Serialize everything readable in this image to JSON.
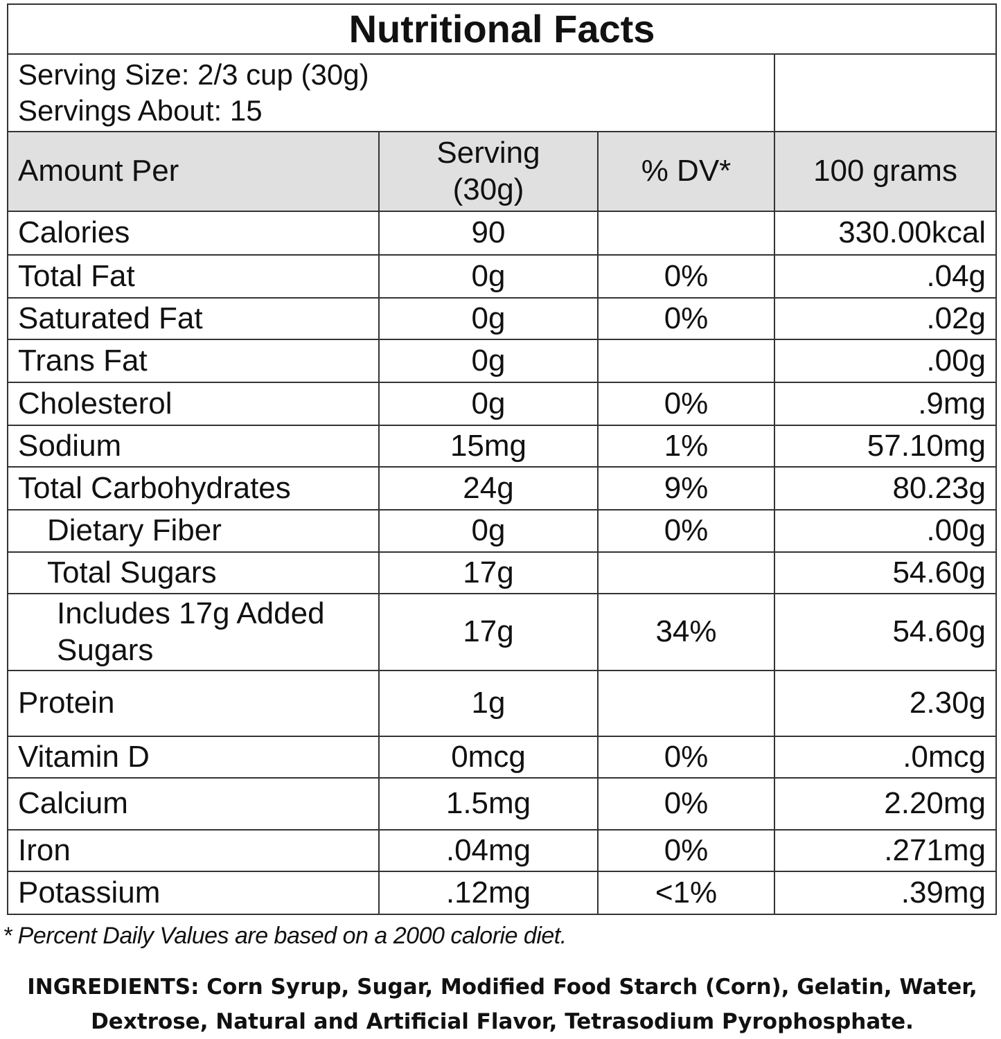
{
  "title": "Nutritional Facts",
  "serving": {
    "size": "Serving Size: 2/3 cup (30g)",
    "count": "Servings About: 15"
  },
  "table": {
    "header": [
      "Amount Per",
      [
        "Serving",
        "(30g)"
      ],
      "% DV*",
      "100 grams"
    ],
    "rows": [
      [
        "Calories",
        "90",
        null,
        "330.00kcal"
      ],
      [
        "Total Fat",
        "0g",
        "0%",
        ".04g"
      ],
      [
        "Saturated Fat",
        "0g",
        "0%",
        ".02g"
      ],
      [
        "Trans Fat",
        "0g",
        null,
        ".00g"
      ],
      [
        "Cholesterol",
        "0g",
        "0%",
        ".9mg"
      ],
      [
        "Sodium",
        "15mg",
        "1%",
        "57.10mg"
      ],
      [
        "Total Carbohydrates",
        "24g",
        "9%",
        "80.23g"
      ],
      [
        "Dietary Fiber",
        "0g",
        "0%",
        ".00g"
      ],
      [
        "Total Sugars",
        "17g",
        null,
        "54.60g"
      ],
      [
        "Includes 17g Added Sugars",
        "17g",
        "34%",
        "54.60g"
      ],
      [
        "Protein",
        "1g",
        null,
        "2.30g"
      ],
      [
        "Vitamin D",
        "0mcg",
        "0%",
        ".0mcg"
      ],
      [
        "Calcium",
        "1.5mg",
        "0%",
        "2.20mg"
      ],
      [
        "Iron",
        ".04mg",
        "0%",
        ".271mg"
      ],
      [
        "Potassium",
        ".12mg",
        "<1%",
        ".39mg"
      ]
    ]
  },
  "footnote": "* Percent Daily Values are based on a 2000 calorie diet.",
  "ingredients": "INGREDIENTS: Corn Syrup, Sugar, Modified Food Starch (Corn), Gelatin, Water, Dextrose, Natural and Artificial Flavor, Tetrasodium Pyrophosphate."
}
